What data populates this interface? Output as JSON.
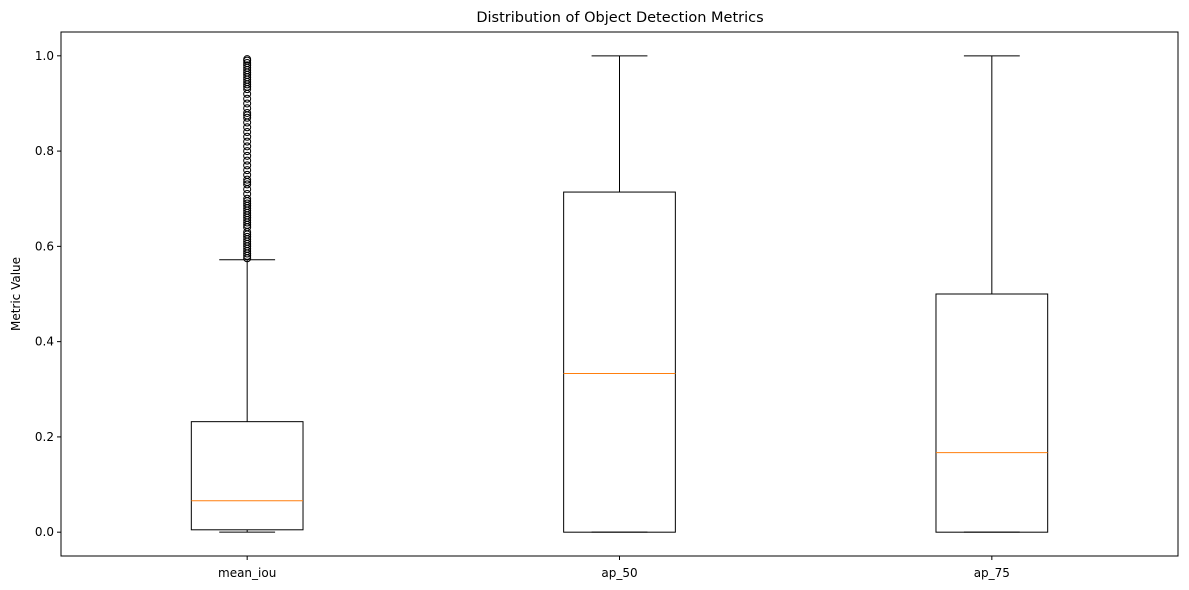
{
  "chart_data": {
    "type": "boxplot",
    "title": "Distribution of Object Detection Metrics",
    "xlabel": "",
    "ylabel": "Metric Value",
    "ylim": [
      -0.05,
      1.05
    ],
    "yticks": [
      0.0,
      0.2,
      0.4,
      0.6,
      0.8,
      1.0
    ],
    "ytick_labels": [
      "0.0",
      "0.2",
      "0.4",
      "0.6",
      "0.8",
      "1.0"
    ],
    "grid": false,
    "colors": {
      "box": "#000000",
      "median": "#ff7f0e",
      "whisker": "#000000",
      "flier": "#000000"
    },
    "boxes": [
      {
        "label": "mean_iou",
        "whisker_low": 0.0,
        "q1": 0.005,
        "median": 0.066,
        "q3": 0.232,
        "whisker_high": 0.572,
        "fliers": [
          0.575,
          0.58,
          0.585,
          0.59,
          0.595,
          0.6,
          0.605,
          0.61,
          0.615,
          0.62,
          0.625,
          0.63,
          0.64,
          0.645,
          0.65,
          0.655,
          0.66,
          0.665,
          0.67,
          0.675,
          0.68,
          0.685,
          0.69,
          0.695,
          0.7,
          0.71,
          0.72,
          0.73,
          0.735,
          0.74,
          0.75,
          0.76,
          0.77,
          0.78,
          0.79,
          0.8,
          0.81,
          0.82,
          0.83,
          0.84,
          0.85,
          0.86,
          0.87,
          0.875,
          0.88,
          0.89,
          0.9,
          0.91,
          0.92,
          0.93,
          0.935,
          0.94,
          0.945,
          0.95,
          0.955,
          0.96,
          0.965,
          0.97,
          0.975,
          0.98,
          0.985,
          0.99,
          0.993
        ]
      },
      {
        "label": "ap_50",
        "whisker_low": 0.0,
        "q1": 0.0,
        "median": 0.333,
        "q3": 0.714,
        "whisker_high": 1.0,
        "fliers": []
      },
      {
        "label": "ap_75",
        "whisker_low": 0.0,
        "q1": 0.0,
        "median": 0.167,
        "q3": 0.5,
        "whisker_high": 1.0,
        "fliers": []
      }
    ]
  }
}
